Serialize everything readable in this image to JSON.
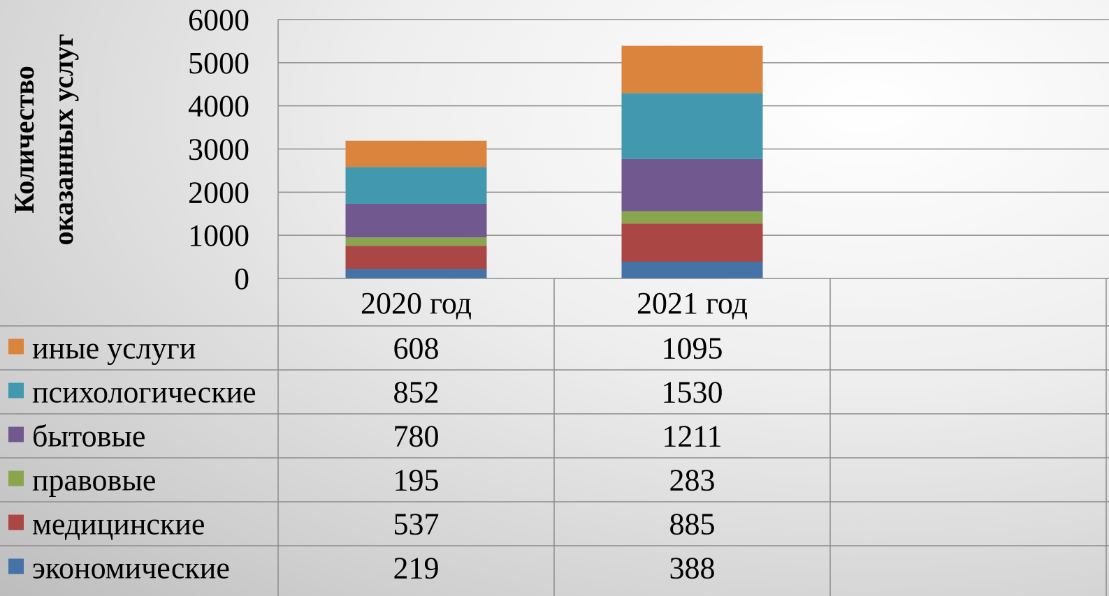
{
  "chart_data": {
    "type": "bar",
    "stacked": true,
    "categories": [
      "2020 год",
      "2021 год"
    ],
    "ylabel_lines": [
      "Количество",
      "оказанных услуг"
    ],
    "ylim": [
      0,
      6000
    ],
    "yticks": [
      "0",
      "1000",
      "2000",
      "3000",
      "4000",
      "5000",
      "6000"
    ],
    "ytick_values": [
      0,
      1000,
      2000,
      3000,
      4000,
      5000,
      6000
    ],
    "grid": true,
    "legend_placement": "data-table-left",
    "series": [
      {
        "name": "экономические",
        "color": "#4572A7",
        "values": [
          219,
          388
        ],
        "labels": [
          "219",
          "388"
        ]
      },
      {
        "name": "медицинские",
        "color": "#AA4643",
        "values": [
          537,
          885
        ],
        "labels": [
          "537",
          "885"
        ]
      },
      {
        "name": "правовые",
        "color": "#89A54E",
        "values": [
          195,
          283
        ],
        "labels": [
          "195",
          "283"
        ]
      },
      {
        "name": "бытовые",
        "color": "#71588F",
        "values": [
          780,
          1211
        ],
        "labels": [
          "780",
          "1211"
        ]
      },
      {
        "name": "психологические",
        "color": "#4198AF",
        "values": [
          852,
          1530
        ],
        "labels": [
          "852",
          "1530"
        ]
      },
      {
        "name": "иные услуги",
        "color": "#DB843D",
        "values": [
          608,
          1095
        ],
        "labels": [
          "608",
          "1095"
        ]
      }
    ]
  }
}
